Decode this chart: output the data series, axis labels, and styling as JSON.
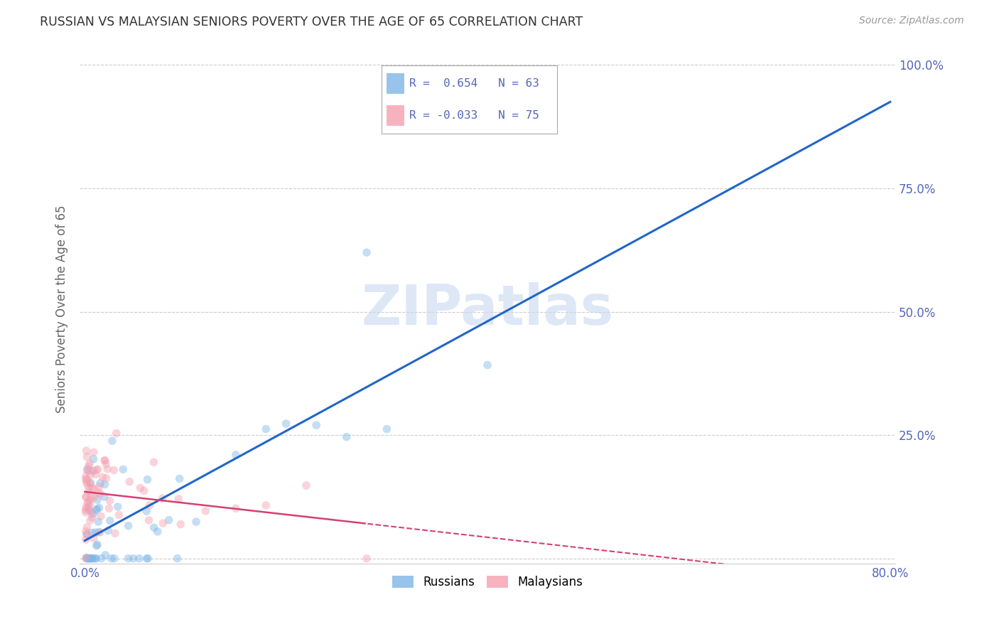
{
  "title": "RUSSIAN VS MALAYSIAN SENIORS POVERTY OVER THE AGE OF 65 CORRELATION CHART",
  "source": "Source: ZipAtlas.com",
  "ylabel": "Seniors Poverty Over the Age of 65",
  "xlim": [
    0.0,
    0.8
  ],
  "ylim": [
    0.0,
    1.0
  ],
  "r_russian": 0.654,
  "n_russian": 63,
  "r_malaysian": -0.033,
  "n_malaysian": 75,
  "russian_color": "#7eb6e8",
  "malaysian_color": "#f4a0b0",
  "regression_russian_color": "#2166c8",
  "regression_malaysian_color": "#d44070",
  "watermark_color": "#c8d8f0",
  "legend_label_russian": "Russians",
  "legend_label_malaysian": "Malaysians",
  "background_color": "#ffffff",
  "grid_color": "#cccccc",
  "axis_color": "#5566bb",
  "marker_size": 70,
  "marker_alpha": 0.45,
  "seed": 7
}
